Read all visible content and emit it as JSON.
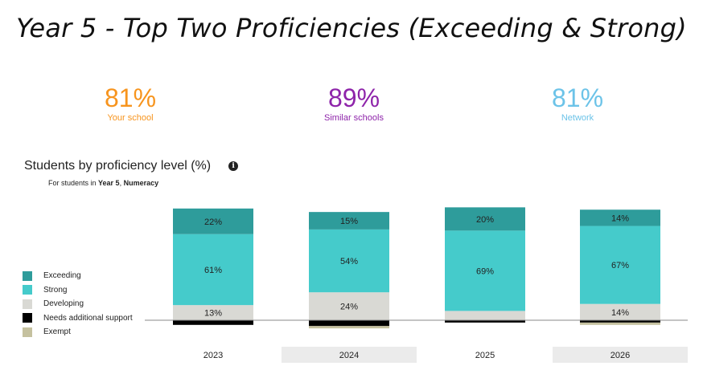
{
  "title": "Year 5 - Top Two Proficiencies (Exceeding & Strong)",
  "stats": [
    {
      "value": "81%",
      "label": "Your school",
      "color": "#f7941d"
    },
    {
      "value": "89%",
      "label": "Similar schools",
      "color": "#8e24aa"
    },
    {
      "value": "81%",
      "label": "Network",
      "color": "#6cc3e8"
    }
  ],
  "heading": "Students by proficiency level (%)",
  "subnote": {
    "prefix": "For students in ",
    "year": "Year 5",
    "sep": ", ",
    "domain": "Numeracy"
  },
  "colors": {
    "Exceeding": "#2e9c9b",
    "Strong": "#45cbcb",
    "Developing": "#d9d9d4",
    "Needs additional support": "#000000",
    "Exempt": "#c5c19f"
  },
  "chart_data": {
    "type": "bar",
    "stacked": true,
    "categories": [
      "2023",
      "2024",
      "2025",
      "2026"
    ],
    "series_above_baseline": [
      "Developing",
      "Strong",
      "Exceeding"
    ],
    "series_below_baseline": [
      "Needs additional support",
      "Exempt"
    ],
    "series": [
      {
        "name": "Exceeding",
        "values": [
          22,
          15,
          20,
          14
        ],
        "labels": [
          "22%",
          "15%",
          "20%",
          "14%"
        ]
      },
      {
        "name": "Strong",
        "values": [
          61,
          54,
          69,
          67
        ],
        "labels": [
          "61%",
          "54%",
          "69%",
          "67%"
        ]
      },
      {
        "name": "Developing",
        "values": [
          13,
          24,
          8,
          14
        ],
        "labels": [
          "13%",
          "24%",
          "",
          "14%"
        ]
      },
      {
        "name": "Needs additional support",
        "values": [
          4,
          5,
          2,
          2
        ],
        "labels": [
          "",
          "",
          "",
          ""
        ]
      },
      {
        "name": "Exempt",
        "values": [
          0,
          2,
          0,
          2
        ],
        "labels": [
          "",
          "",
          "",
          ""
        ]
      }
    ],
    "legend": [
      "Exceeding",
      "Strong",
      "Developing",
      "Needs additional support",
      "Exempt"
    ],
    "legend_position": "left",
    "grid": false
  }
}
